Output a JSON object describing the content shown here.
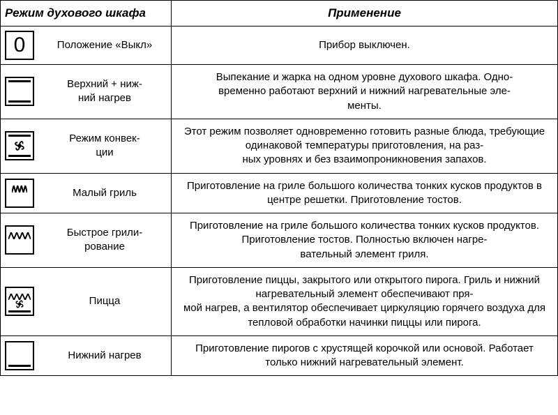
{
  "header": {
    "mode": "Режим духового шкафа",
    "application": "Применение"
  },
  "rows": [
    {
      "icon": "zero",
      "mode": "Положение «Выкл»",
      "application": "Прибор выключен."
    },
    {
      "icon": "top-bottom",
      "mode": "Верхний + ниж-\nний нагрев",
      "application": "Выпекание и жарка на одном уровне духового шкафа. Одно-\nвременно работают верхний и нижний нагревательные эле-\nменты."
    },
    {
      "icon": "convection",
      "mode": "Режим конвек-\nции",
      "application": "Этот режим позволяет одновременно готовить разные блюда, требующие одинаковой температуры приготовления, на раз-\nных уровнях и без взаимопроникновения запахов."
    },
    {
      "icon": "small-grill",
      "mode": "Малый гриль",
      "application": "Приготовление на гриле большого количества тонких кусков продуктов в центре решетки. Приготовление тостов."
    },
    {
      "icon": "full-grill",
      "mode": "Быстрое грили-\nрование",
      "application": "Приготовление на гриле большого количества тонких кусков продуктов. Приготовление тостов. Полностью включен нагре-\nвательный элемент гриля."
    },
    {
      "icon": "pizza",
      "mode": "Пицца",
      "application": "Приготовление пиццы, закрытого или открытого пирога. Гриль и нижний нагревательный элемент обеспечивают пря-\nмой нагрев, а вентилятор обеспечивает циркуляцию горячего воздуха для тепловой обработки начинки пиццы или пирога."
    },
    {
      "icon": "bottom",
      "mode": "Нижний нагрев",
      "application": "Приготовление пирогов с хрустящей корочкой или основой. Работает только нижний нагревательный элемент."
    }
  ]
}
